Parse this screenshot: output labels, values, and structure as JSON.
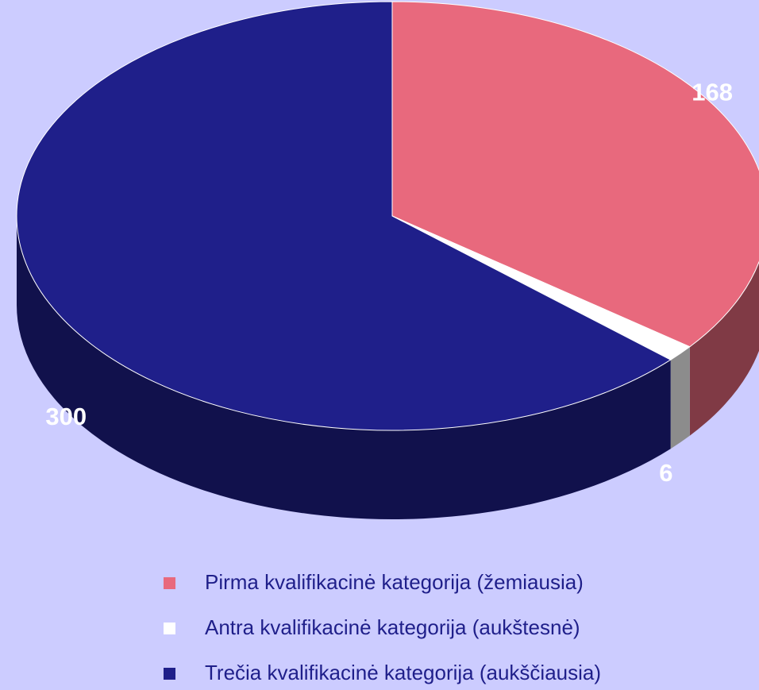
{
  "chart_data": {
    "type": "pie",
    "categories": [
      "Pirma kvalifikacinė kategorija (žemiausia)",
      "Antra kvalifikacinė kategorija (aukštesnė)",
      "Trečia kvalifikacinė kategorija (aukščiausia)"
    ],
    "values": [
      168,
      6,
      300
    ],
    "colors": [
      "#e8697d",
      "#ffffff",
      "#1f1f8a"
    ],
    "legend": "bottom"
  }
}
